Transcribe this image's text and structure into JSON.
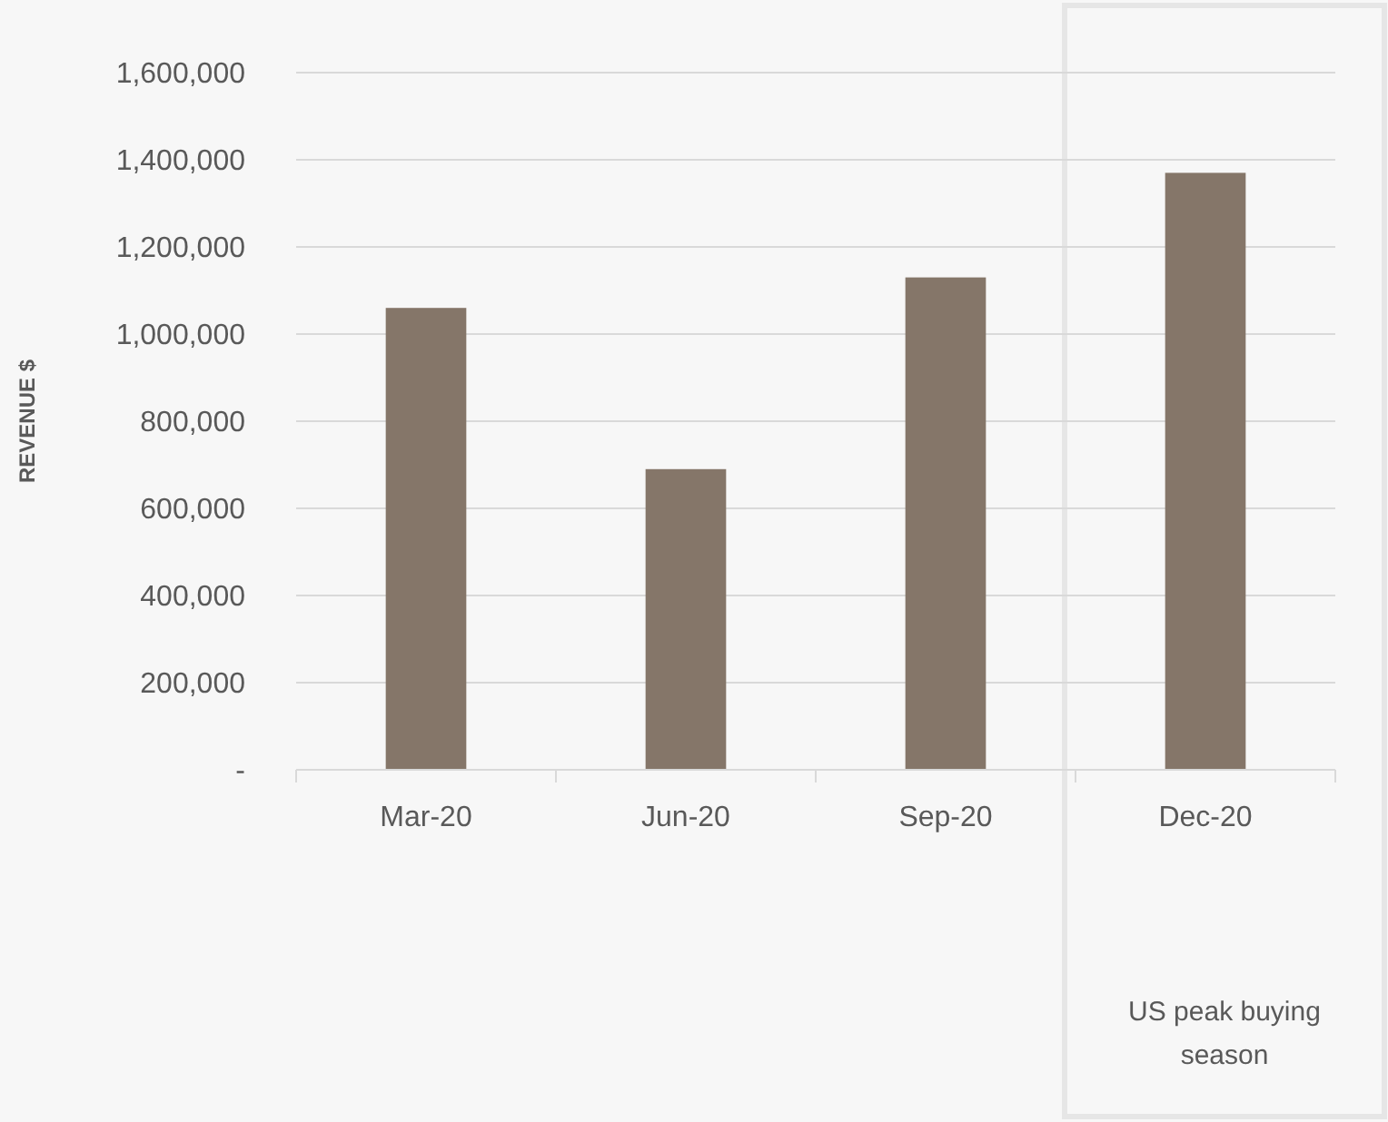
{
  "chart_data": {
    "type": "bar",
    "ylabel": "REVENUE $",
    "categories": [
      "Mar-20",
      "Jun-20",
      "Sep-20",
      "Dec-20"
    ],
    "values": [
      1060000,
      690000,
      1130000,
      1370000
    ],
    "color": "#857669",
    "ylim": [
      0,
      1600000
    ],
    "yticks": [
      {
        "value": 0,
        "label": "-"
      },
      {
        "value": 200000,
        "label": "200,000"
      },
      {
        "value": 400000,
        "label": "400,000"
      },
      {
        "value": 600000,
        "label": "600,000"
      },
      {
        "value": 800000,
        "label": "800,000"
      },
      {
        "value": 1000000,
        "label": "1,000,000"
      },
      {
        "value": 1200000,
        "label": "1,200,000"
      },
      {
        "value": 1400000,
        "label": "1,400,000"
      },
      {
        "value": 1600000,
        "label": "1,600,000"
      }
    ],
    "grid": "y",
    "annotations": [
      "US peak buying season"
    ]
  }
}
